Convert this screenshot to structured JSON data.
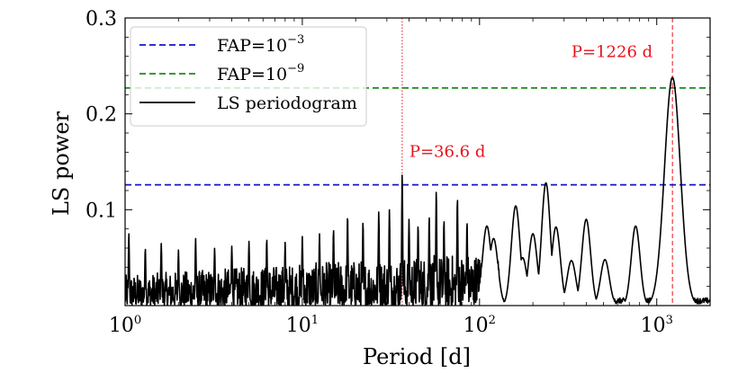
{
  "chart_data": {
    "type": "line",
    "title": "",
    "xlabel": "Period [d]",
    "ylabel": "LS power",
    "xscale": "log",
    "xlim": [
      1,
      2000
    ],
    "ylim": [
      0,
      0.3
    ],
    "grid": false,
    "x_ticks": [
      {
        "value": 1,
        "base": "10",
        "exp": "0"
      },
      {
        "value": 10,
        "base": "10",
        "exp": "1"
      },
      {
        "value": 100,
        "base": "10",
        "exp": "2"
      },
      {
        "value": 1000,
        "base": "10",
        "exp": "3"
      }
    ],
    "y_ticks": [
      {
        "value": 0.1,
        "label": "0.1"
      },
      {
        "value": 0.2,
        "label": "0.2"
      },
      {
        "value": 0.3,
        "label": "0.3"
      }
    ],
    "series": [
      {
        "name": "LS periodogram",
        "color": "#000000",
        "peaks": [
          {
            "x": 1.05,
            "y": 0.075
          },
          {
            "x": 1.3,
            "y": 0.06
          },
          {
            "x": 1.6,
            "y": 0.065
          },
          {
            "x": 2.0,
            "y": 0.058
          },
          {
            "x": 2.5,
            "y": 0.07
          },
          {
            "x": 3.2,
            "y": 0.06
          },
          {
            "x": 4.0,
            "y": 0.062
          },
          {
            "x": 5.0,
            "y": 0.067
          },
          {
            "x": 6.3,
            "y": 0.07
          },
          {
            "x": 8.0,
            "y": 0.066
          },
          {
            "x": 10.0,
            "y": 0.072
          },
          {
            "x": 12.5,
            "y": 0.075
          },
          {
            "x": 15.0,
            "y": 0.08
          },
          {
            "x": 18.0,
            "y": 0.095
          },
          {
            "x": 22.0,
            "y": 0.088
          },
          {
            "x": 27.0,
            "y": 0.098
          },
          {
            "x": 31.0,
            "y": 0.1
          },
          {
            "x": 36.6,
            "y": 0.137
          },
          {
            "x": 40.0,
            "y": 0.09
          },
          {
            "x": 45.0,
            "y": 0.085
          },
          {
            "x": 52.0,
            "y": 0.093
          },
          {
            "x": 57.0,
            "y": 0.12
          },
          {
            "x": 63.0,
            "y": 0.09
          },
          {
            "x": 75.0,
            "y": 0.113
          },
          {
            "x": 85.0,
            "y": 0.088
          },
          {
            "x": 110.0,
            "y": 0.083
          },
          {
            "x": 120.0,
            "y": 0.07
          },
          {
            "x": 160.0,
            "y": 0.104
          },
          {
            "x": 175.0,
            "y": 0.05
          },
          {
            "x": 200.0,
            "y": 0.075
          },
          {
            "x": 237.0,
            "y": 0.128
          },
          {
            "x": 270.0,
            "y": 0.082
          },
          {
            "x": 330.0,
            "y": 0.047
          },
          {
            "x": 400.0,
            "y": 0.09
          },
          {
            "x": 510.0,
            "y": 0.048
          },
          {
            "x": 760.0,
            "y": 0.083
          },
          {
            "x": 1226.0,
            "y": 0.238
          }
        ]
      }
    ],
    "reference_lines": [
      {
        "label_base": "FAP=10",
        "label_exp": "−3",
        "y": 0.126,
        "color": "#1414c8",
        "style": "dashed"
      },
      {
        "label_base": "FAP=10",
        "label_exp": "−9",
        "y": 0.227,
        "color": "#1f8a1f",
        "style": "dashed"
      }
    ],
    "vertical_lines": [
      {
        "x": 36.6,
        "color": "#e8111a",
        "style": "dotted"
      },
      {
        "x": 1226,
        "color": "#e8111a",
        "style": "dashed"
      }
    ],
    "annotations": [
      {
        "text": "P=36.6 d",
        "x": 36.6,
        "y": 0.155,
        "color": "#e8111a"
      },
      {
        "text": "P=1226 d",
        "x": 1226,
        "y": 0.259,
        "color": "#e8111a",
        "anchor": "end"
      }
    ],
    "legend": {
      "position": "top-left",
      "entries": [
        {
          "label_base": "FAP=10",
          "label_exp": "−3",
          "color": "#1414c8",
          "style": "dashed"
        },
        {
          "label_base": "FAP=10",
          "label_exp": "−9",
          "color": "#1f8a1f",
          "style": "dashed"
        },
        {
          "label_base": "LS periodogram",
          "label_exp": "",
          "color": "#000000",
          "style": "solid"
        }
      ]
    }
  }
}
